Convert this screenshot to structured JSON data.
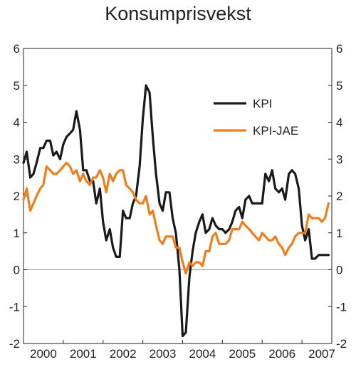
{
  "chart_data": {
    "type": "line",
    "title": "Konsumprisvekst",
    "xlabel": "",
    "ylabel": "",
    "xlim": [
      2000.0,
      2007.75
    ],
    "ylim": [
      -2,
      6
    ],
    "y_ticks": [
      -2,
      -1,
      0,
      1,
      2,
      3,
      4,
      5,
      6
    ],
    "x_tick_labels": [
      "2000",
      "2001",
      "2002",
      "2003",
      "2004",
      "2005",
      "2006",
      "2007"
    ],
    "zero_line": true,
    "legend_position": "top-right",
    "series": [
      {
        "name": "KPI",
        "color": "#1a1a1a",
        "x": [
          2000.0,
          2000.08,
          2000.17,
          2000.25,
          2000.33,
          2000.42,
          2000.5,
          2000.58,
          2000.67,
          2000.75,
          2000.83,
          2000.92,
          2001.0,
          2001.08,
          2001.17,
          2001.25,
          2001.33,
          2001.42,
          2001.5,
          2001.58,
          2001.67,
          2001.75,
          2001.83,
          2001.92,
          2002.0,
          2002.08,
          2002.17,
          2002.25,
          2002.33,
          2002.42,
          2002.5,
          2002.58,
          2002.67,
          2002.75,
          2002.83,
          2002.92,
          2003.0,
          2003.08,
          2003.17,
          2003.25,
          2003.33,
          2003.42,
          2003.5,
          2003.58,
          2003.67,
          2003.75,
          2003.83,
          2003.92,
          2004.0,
          2004.08,
          2004.17,
          2004.25,
          2004.33,
          2004.42,
          2004.5,
          2004.58,
          2004.67,
          2004.75,
          2004.83,
          2004.92,
          2005.0,
          2005.08,
          2005.17,
          2005.25,
          2005.33,
          2005.42,
          2005.5,
          2005.58,
          2005.67,
          2005.75,
          2005.83,
          2005.92,
          2006.0,
          2006.08,
          2006.17,
          2006.25,
          2006.33,
          2006.42,
          2006.5,
          2006.58,
          2006.67,
          2006.75,
          2006.83,
          2006.92,
          2007.0,
          2007.08,
          2007.17,
          2007.25,
          2007.33,
          2007.42,
          2007.5,
          2007.58,
          2007.67
        ],
        "values": [
          2.9,
          3.2,
          2.5,
          2.6,
          2.9,
          3.3,
          3.3,
          3.5,
          3.5,
          3.1,
          3.2,
          3.0,
          3.4,
          3.6,
          3.7,
          3.8,
          4.3,
          3.8,
          2.7,
          2.7,
          2.4,
          2.4,
          1.8,
          2.2,
          1.3,
          0.8,
          1.1,
          0.6,
          0.35,
          0.35,
          1.6,
          1.4,
          1.4,
          1.8,
          2.0,
          2.8,
          4.1,
          5.0,
          4.8,
          3.6,
          2.6,
          1.8,
          1.6,
          2.1,
          2.1,
          1.4,
          1.0,
          0.0,
          -1.8,
          -1.7,
          -0.2,
          0.5,
          1.0,
          1.3,
          1.5,
          1.0,
          1.1,
          1.4,
          1.2,
          1.1,
          1.1,
          1.0,
          1.1,
          1.3,
          1.6,
          1.7,
          1.4,
          1.9,
          2.0,
          1.8,
          1.8,
          1.8,
          1.8,
          2.6,
          2.4,
          2.7,
          2.2,
          2.1,
          2.2,
          1.9,
          2.6,
          2.7,
          2.6,
          2.2,
          1.2,
          0.8,
          1.1,
          0.3,
          0.3,
          0.4,
          0.4,
          0.4,
          0.4
        ]
      },
      {
        "name": "KPI-JAE",
        "color": "#f07d1a",
        "x": [
          2000.0,
          2000.08,
          2000.17,
          2000.25,
          2000.33,
          2000.42,
          2000.5,
          2000.58,
          2000.67,
          2000.75,
          2000.83,
          2000.92,
          2001.0,
          2001.08,
          2001.17,
          2001.25,
          2001.33,
          2001.42,
          2001.5,
          2001.58,
          2001.67,
          2001.75,
          2001.83,
          2001.92,
          2002.0,
          2002.08,
          2002.17,
          2002.25,
          2002.33,
          2002.42,
          2002.5,
          2002.58,
          2002.67,
          2002.75,
          2002.83,
          2002.92,
          2003.0,
          2003.08,
          2003.17,
          2003.25,
          2003.33,
          2003.42,
          2003.5,
          2003.58,
          2003.67,
          2003.75,
          2003.83,
          2003.92,
          2004.0,
          2004.08,
          2004.17,
          2004.25,
          2004.33,
          2004.42,
          2004.5,
          2004.58,
          2004.67,
          2004.75,
          2004.83,
          2004.92,
          2005.0,
          2005.08,
          2005.17,
          2005.25,
          2005.33,
          2005.42,
          2005.5,
          2005.58,
          2005.67,
          2005.75,
          2005.83,
          2005.92,
          2006.0,
          2006.08,
          2006.17,
          2006.25,
          2006.33,
          2006.42,
          2006.5,
          2006.58,
          2006.67,
          2006.75,
          2006.83,
          2006.92,
          2007.0,
          2007.08,
          2007.17,
          2007.25,
          2007.33,
          2007.42,
          2007.5,
          2007.58,
          2007.67
        ],
        "values": [
          1.9,
          2.2,
          1.6,
          1.8,
          2.0,
          2.2,
          2.3,
          2.8,
          2.7,
          2.6,
          2.6,
          2.7,
          2.8,
          2.9,
          2.8,
          2.6,
          2.7,
          2.4,
          2.6,
          2.4,
          2.3,
          2.5,
          2.5,
          2.7,
          2.5,
          2.1,
          2.6,
          2.4,
          2.6,
          2.7,
          2.7,
          2.3,
          2.2,
          2.1,
          1.9,
          1.8,
          1.8,
          2.0,
          1.5,
          1.6,
          1.2,
          0.8,
          0.7,
          0.9,
          0.9,
          0.9,
          0.6,
          0.6,
          0.2,
          -0.1,
          0.2,
          0.1,
          0.2,
          0.2,
          0.1,
          0.5,
          0.5,
          0.9,
          1.0,
          0.7,
          0.7,
          0.7,
          0.8,
          1.1,
          1.1,
          1.1,
          1.3,
          1.2,
          1.1,
          1.0,
          0.9,
          0.8,
          1.0,
          0.9,
          0.8,
          0.8,
          0.9,
          0.7,
          0.6,
          0.4,
          0.6,
          0.7,
          0.9,
          1.0,
          1.0,
          1.0,
          1.5,
          1.4,
          1.4,
          1.4,
          1.3,
          1.4,
          1.8
        ]
      }
    ]
  }
}
